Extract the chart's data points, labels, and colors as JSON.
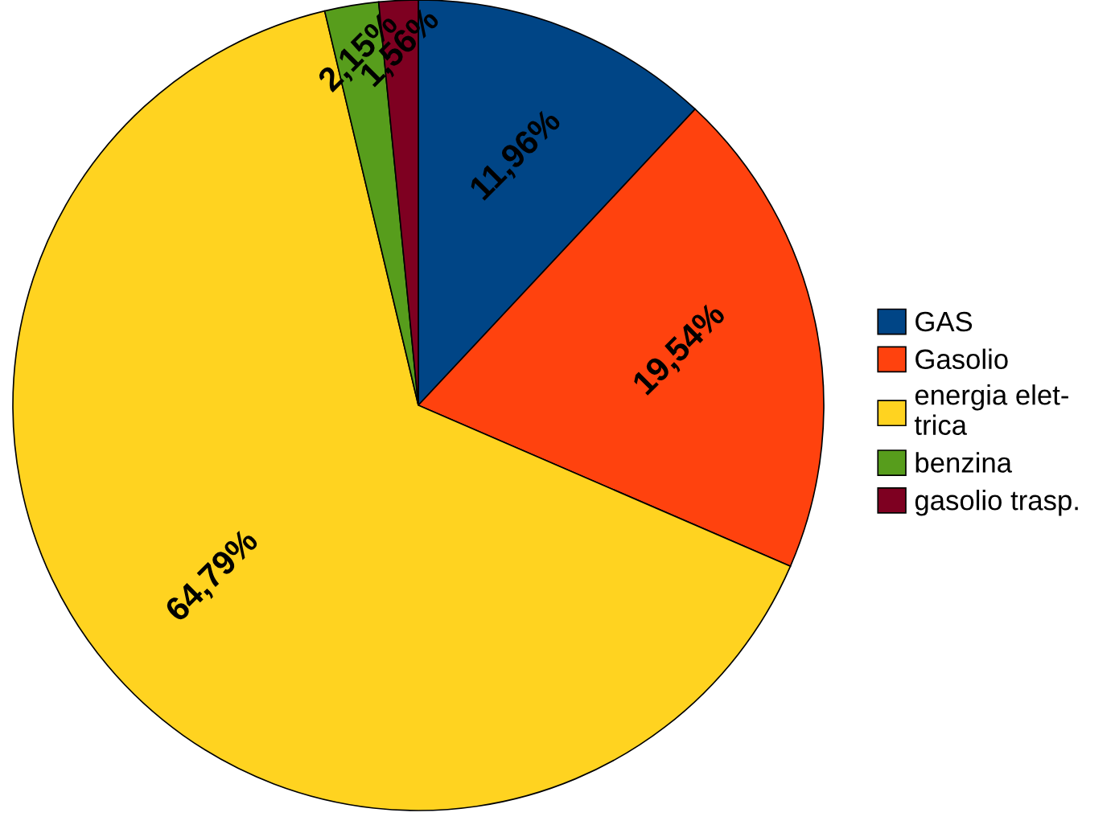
{
  "chart_data": {
    "type": "pie",
    "categories": [
      "GAS",
      "Gasolio",
      "energia elet-\ntrica",
      "benzina",
      "gasolio trasp."
    ],
    "values": [
      11.96,
      19.54,
      64.79,
      2.15,
      1.56
    ],
    "value_labels": [
      "11,96%",
      "19,54%",
      "64,79%",
      "2,15%",
      "1,56%"
    ],
    "colors": [
      "#004586",
      "#ff420e",
      "#ffd320",
      "#579d1c",
      "#7e0021"
    ],
    "legend": "right"
  }
}
